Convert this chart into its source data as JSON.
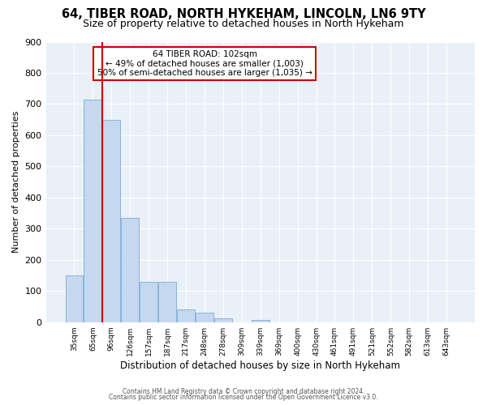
{
  "title1": "64, TIBER ROAD, NORTH HYKEHAM, LINCOLN, LN6 9TY",
  "title2": "Size of property relative to detached houses in North Hykeham",
  "xlabel": "Distribution of detached houses by size in North Hykeham",
  "ylabel": "Number of detached properties",
  "bar_labels": [
    "35sqm",
    "65sqm",
    "96sqm",
    "126sqm",
    "157sqm",
    "187sqm",
    "217sqm",
    "248sqm",
    "278sqm",
    "309sqm",
    "339sqm",
    "369sqm",
    "400sqm",
    "430sqm",
    "461sqm",
    "491sqm",
    "521sqm",
    "552sqm",
    "582sqm",
    "613sqm",
    "643sqm"
  ],
  "bar_heights": [
    150,
    715,
    650,
    335,
    128,
    128,
    42,
    30,
    13,
    0,
    8,
    0,
    0,
    0,
    0,
    0,
    0,
    0,
    0,
    0,
    0
  ],
  "bar_color": "#c5d8f0",
  "bar_edgecolor": "#7aadd4",
  "vline_x_index": 1.5,
  "vline_color": "#cc0000",
  "annotation_title": "64 TIBER ROAD: 102sqm",
  "annotation_line1": "← 49% of detached houses are smaller (1,003)",
  "annotation_line2": "50% of semi-detached houses are larger (1,035) →",
  "annotation_box_edgecolor": "#cc0000",
  "annotation_box_facecolor": "#ffffff",
  "ylim": [
    0,
    900
  ],
  "yticks": [
    0,
    100,
    200,
    300,
    400,
    500,
    600,
    700,
    800,
    900
  ],
  "footer1": "Contains HM Land Registry data © Crown copyright and database right 2024.",
  "footer2": "Contains public sector information licensed under the Open Government Licence v3.0.",
  "background_color": "#eaf0f8",
  "title_fontsize": 10.5,
  "subtitle_fontsize": 9
}
